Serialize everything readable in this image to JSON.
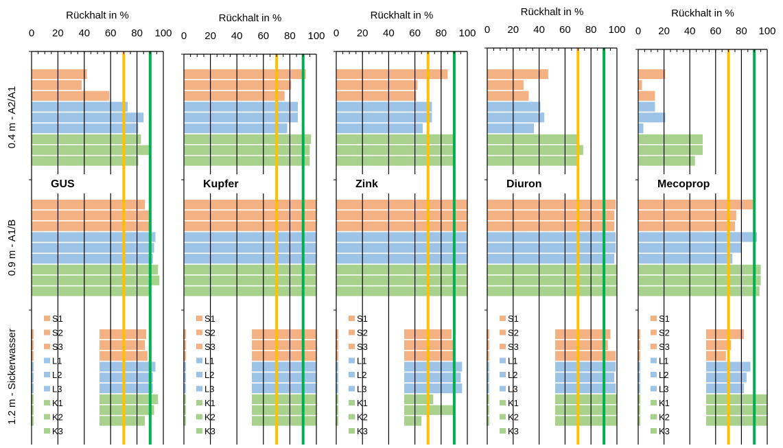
{
  "chart_data": {
    "type": "bar",
    "orientation": "horizontal",
    "categories": [
      "S1",
      "S2",
      "S3",
      "L1",
      "L2",
      "L3",
      "K1",
      "K2",
      "K3"
    ],
    "depth_labels": [
      "0.4 m - A2/A1",
      "0.9 m - A1/B",
      "1.2 m - Sickerwasser"
    ],
    "x_axis_label": "Rückhalt in %",
    "xlim": [
      0,
      100
    ],
    "ticks": [
      0,
      20,
      40,
      60,
      80,
      100
    ],
    "reference_lines": [
      {
        "value": 70,
        "color": "#ffc000"
      },
      {
        "value": 90,
        "color": "#00b050"
      }
    ],
    "group_colors": {
      "S": "#f4b183",
      "L": "#9dc3e6",
      "K": "#a9d18e"
    },
    "legend": [
      {
        "label": "S1",
        "group": "S"
      },
      {
        "label": "S2",
        "group": "S"
      },
      {
        "label": "S3",
        "group": "S"
      },
      {
        "label": "L1",
        "group": "L"
      },
      {
        "label": "L2",
        "group": "L"
      },
      {
        "label": "L3",
        "group": "L"
      },
      {
        "label": "K1",
        "group": "K"
      },
      {
        "label": "K2",
        "group": "K"
      },
      {
        "label": "K3",
        "group": "K"
      }
    ],
    "panels": [
      {
        "title": "GUS",
        "values": [
          [
            42,
            38,
            59,
            73,
            85,
            81,
            83,
            89,
            81
          ],
          [
            86,
            89,
            91,
            94,
            93,
            92,
            96,
            97,
            90
          ],
          [
            87,
            86,
            88,
            94,
            92,
            92,
            96,
            93,
            86
          ]
        ]
      },
      {
        "title": "Kupfer",
        "values": [
          [
            92,
            81,
            76,
            86,
            86,
            78,
            96,
            95,
            95
          ],
          [
            100,
            100,
            100,
            100,
            100,
            100,
            100,
            100,
            100
          ],
          [
            100,
            100,
            100,
            100,
            100,
            100,
            100,
            100,
            100
          ]
        ]
      },
      {
        "title": "Zink",
        "values": [
          [
            85,
            62,
            61,
            73,
            73,
            66,
            90,
            90,
            90
          ],
          [
            100,
            100,
            100,
            100,
            100,
            100,
            100,
            100,
            100
          ],
          [
            88,
            90,
            90,
            96,
            95,
            96,
            74,
            90,
            65
          ]
        ]
      },
      {
        "title": "Diuron",
        "values": [
          [
            47,
            28,
            32,
            41,
            44,
            36,
            71,
            74,
            70
          ],
          [
            99,
            98,
            98,
            99,
            99,
            98,
            100,
            100,
            100
          ],
          [
            95,
            93,
            99,
            99,
            98,
            99,
            100,
            100,
            100
          ]
        ]
      },
      {
        "title": "Mecoprop",
        "values": [
          [
            21,
            3,
            13,
            13,
            21,
            4,
            50,
            50,
            44
          ],
          [
            89,
            76,
            75,
            92,
            80,
            73,
            95,
            95,
            94
          ],
          [
            82,
            72,
            68,
            87,
            84,
            82,
            100,
            100,
            100
          ]
        ]
      }
    ]
  }
}
